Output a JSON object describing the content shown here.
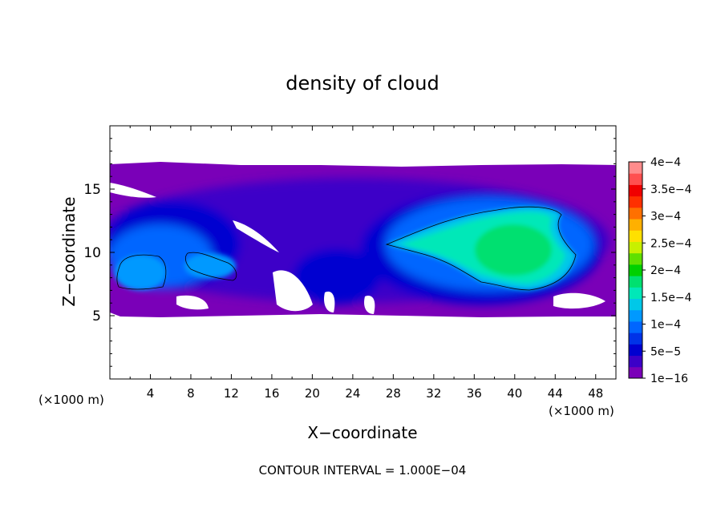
{
  "chart_data": {
    "type": "heatmap",
    "title": "density of cloud",
    "xlabel": "X−coordinate",
    "ylabel": "Z−coordinate",
    "x_unit_left": "(×1000 m)",
    "x_unit_right": "(×1000 m)",
    "xlim": [
      0,
      50
    ],
    "ylim": [
      0,
      20
    ],
    "x_ticks": [
      4,
      8,
      12,
      16,
      20,
      24,
      28,
      32,
      36,
      40,
      44,
      48
    ],
    "x_tick_labels": [
      "4",
      "8",
      "12",
      "16",
      "20",
      "24",
      "28",
      "32",
      "36",
      "40",
      "44",
      "48"
    ],
    "y_ticks": [
      5,
      10,
      15
    ],
    "y_tick_labels": [
      "5",
      "10",
      "15"
    ],
    "footer": "CONTOUR INTERVAL = 1.000E−04",
    "colorbar": {
      "levels": [
        "1e−16",
        "5e−5",
        "1e−4",
        "1.5e−4",
        "2e−4",
        "2.5e−4",
        "3e−4",
        "3.5e−4",
        "4e−4"
      ],
      "colors": [
        "#7a00b8",
        "#3c00c8",
        "#0000d0",
        "#0033e8",
        "#0066ff",
        "#0099ff",
        "#00c8e8",
        "#00e8b8",
        "#00e070",
        "#00d000",
        "#60e000",
        "#c8f000",
        "#ffe000",
        "#ffb000",
        "#ff7000",
        "#ff3000",
        "#f00000",
        "#ff5050",
        "#ff8c8c"
      ]
    },
    "contour_level": "1e−4",
    "cloud_extent": {
      "x": [
        0,
        50
      ],
      "z": [
        5,
        17
      ]
    }
  }
}
